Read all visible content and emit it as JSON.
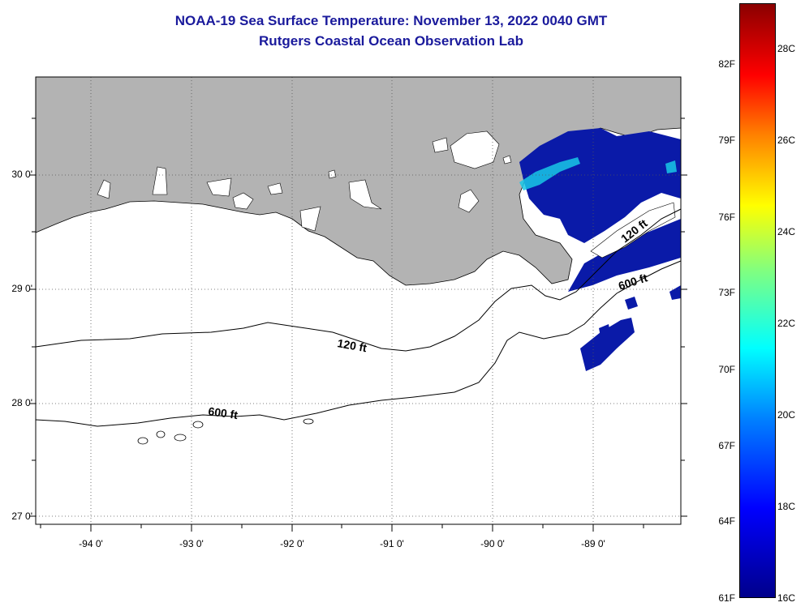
{
  "title": "NOAA-19 Sea Surface Temperature:  November 13, 2022 0040 GMT",
  "subtitle": "Rutgers Coastal Ocean Observation Lab",
  "lat_labels": [
    "30 0'",
    "29 0'",
    "28 0'",
    "27 0'"
  ],
  "lon_labels": [
    "-94 0'",
    "-93 0'",
    "-92 0'",
    "-91 0'",
    "-90 0'",
    "-89 0'"
  ],
  "contours": {
    "shelf_120": "120 ft",
    "slope_600": "600 ft",
    "east_120": "120 ft",
    "east_600": "600 ft"
  },
  "colorbar": {
    "fahrenheit": [
      "82F",
      "79F",
      "76F",
      "73F",
      "70F",
      "67F",
      "64F",
      "61F"
    ],
    "celsius": [
      "28C",
      "26C",
      "24C",
      "22C",
      "20C",
      "18C",
      "16C"
    ]
  },
  "colors": {
    "land": "#b3b3b3",
    "water": "#ffffff",
    "sst_cold": "#0a1aa8",
    "sst_cyan": "#19c8e6",
    "title": "#1a1a9c"
  }
}
